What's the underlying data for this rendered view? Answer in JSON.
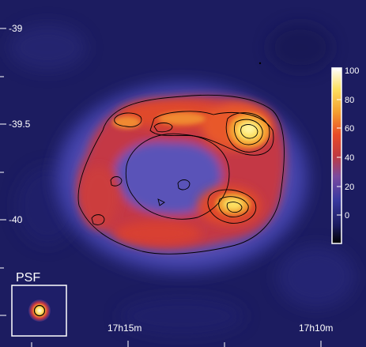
{
  "image": {
    "colormap": [
      "#000000",
      "#1a1a5c",
      "#3a3aa0",
      "#5a55b8",
      "#c03a40",
      "#e84a28",
      "#f5a030",
      "#fde060",
      "#ffffff"
    ],
    "contour_color": "#000000"
  },
  "axes": {
    "dec_ticks": [
      "-39",
      "-39.5",
      "-40"
    ],
    "ra_ticks": [
      "17h15m",
      "17h10m"
    ]
  },
  "colorbar": {
    "ticks": [
      "100",
      "80",
      "60",
      "40",
      "20",
      "0"
    ]
  },
  "psf": {
    "label": "PSF"
  }
}
